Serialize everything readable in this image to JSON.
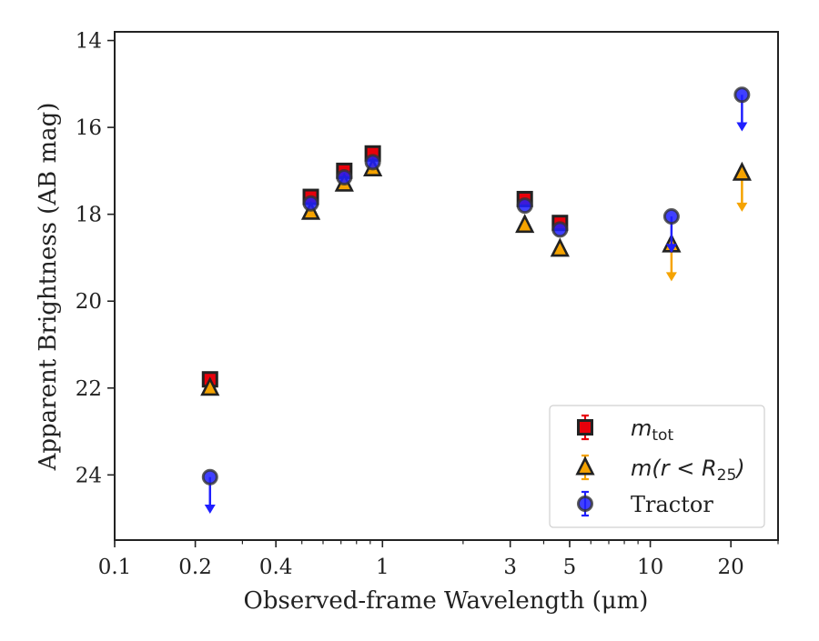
{
  "chart_data": {
    "type": "scatter",
    "xlabel": "Observed-frame Wavelength (μm)",
    "ylabel": "Apparent Brightness (AB mag)",
    "xscale": "log",
    "xlim": [
      0.1,
      30
    ],
    "ylim": [
      25.5,
      13.8
    ],
    "y_inverted": true,
    "xticks": [
      {
        "value": 0.1,
        "label": "0.1"
      },
      {
        "value": 0.2,
        "label": "0.2"
      },
      {
        "value": 0.4,
        "label": "0.4"
      },
      {
        "value": 1,
        "label": "1"
      },
      {
        "value": 3,
        "label": "3"
      },
      {
        "value": 5,
        "label": "5"
      },
      {
        "value": 10,
        "label": "10"
      },
      {
        "value": 20,
        "label": "20"
      }
    ],
    "yticks": [
      {
        "value": 14,
        "label": "14"
      },
      {
        "value": 16,
        "label": "16"
      },
      {
        "value": 18,
        "label": "18"
      },
      {
        "value": 20,
        "label": "20"
      },
      {
        "value": 22,
        "label": "22"
      },
      {
        "value": 24,
        "label": "24"
      }
    ],
    "grid": false,
    "legend_position": "bottom-right",
    "series": [
      {
        "key": "mtot",
        "name_main": "m",
        "name_sub": "tot",
        "marker": "square",
        "color": "#e8000b",
        "edge_color": "#222222",
        "points": [
          {
            "x": 0.227,
            "y": 21.8,
            "upper_limit": false
          },
          {
            "x": 0.54,
            "y": 17.6,
            "upper_limit": false
          },
          {
            "x": 0.72,
            "y": 17.0,
            "upper_limit": false
          },
          {
            "x": 0.92,
            "y": 16.6,
            "upper_limit": false
          },
          {
            "x": 3.4,
            "y": 17.65,
            "upper_limit": false
          },
          {
            "x": 4.6,
            "y": 18.2,
            "upper_limit": false
          }
        ]
      },
      {
        "key": "mr25",
        "name_text": "m(r < R",
        "name_sub": "25",
        "name_close": ")",
        "marker": "triangle",
        "color": "#f5a300",
        "edge_color": "#222222",
        "points": [
          {
            "x": 0.227,
            "y": 22.0,
            "upper_limit": false
          },
          {
            "x": 0.54,
            "y": 17.95,
            "upper_limit": false
          },
          {
            "x": 0.72,
            "y": 17.3,
            "upper_limit": false
          },
          {
            "x": 0.92,
            "y": 16.95,
            "upper_limit": false
          },
          {
            "x": 3.4,
            "y": 18.25,
            "upper_limit": false
          },
          {
            "x": 4.6,
            "y": 18.8,
            "upper_limit": false
          },
          {
            "x": 12.0,
            "y": 18.7,
            "upper_limit": true,
            "limit_to": 19.5
          },
          {
            "x": 22.0,
            "y": 17.05,
            "upper_limit": true,
            "limit_to": 17.9
          }
        ]
      },
      {
        "key": "tractor",
        "name": "Tractor",
        "marker": "circle",
        "color": "#1f1fff",
        "edge_color": "#333333",
        "points": [
          {
            "x": 0.227,
            "y": 24.05,
            "upper_limit": true,
            "limit_to": 24.85
          },
          {
            "x": 0.54,
            "y": 17.75,
            "upper_limit": false
          },
          {
            "x": 0.72,
            "y": 17.15,
            "upper_limit": false
          },
          {
            "x": 0.92,
            "y": 16.8,
            "upper_limit": false
          },
          {
            "x": 3.4,
            "y": 17.8,
            "upper_limit": false
          },
          {
            "x": 4.6,
            "y": 18.35,
            "upper_limit": false
          },
          {
            "x": 12.0,
            "y": 18.05,
            "upper_limit": true,
            "limit_to": 18.85
          },
          {
            "x": 22.0,
            "y": 15.25,
            "upper_limit": true,
            "limit_to": 16.05
          }
        ]
      }
    ]
  }
}
